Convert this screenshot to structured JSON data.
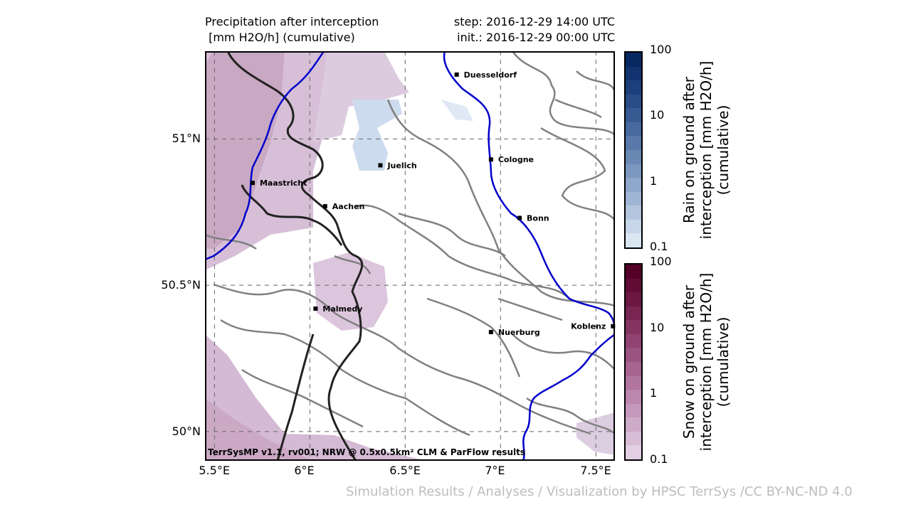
{
  "header": {
    "title_line1": "Precipitation after interception",
    "title_line2": " [mm H2O/h] (cumulative)",
    "step": "step: 2016-12-29 14:00 UTC",
    "init": "init.: 2016-12-29 00:00 UTC"
  },
  "map": {
    "lon_range": [
      5.45,
      7.6
    ],
    "lat_range": [
      49.9,
      51.3
    ],
    "lat_ticks": [
      {
        "value": 51.0,
        "label": "51°N"
      },
      {
        "value": 50.5,
        "label": "50.5°N"
      },
      {
        "value": 50.0,
        "label": "50°N"
      }
    ],
    "lon_ticks": [
      {
        "value": 5.5,
        "label": "5.5°E"
      },
      {
        "value": 6.0,
        "label": "6°E"
      },
      {
        "value": 6.5,
        "label": "6.5°E"
      },
      {
        "value": 7.0,
        "label": "7°E"
      },
      {
        "value": 7.5,
        "label": "7.5°E"
      }
    ],
    "cities": [
      {
        "name": "Duesseldorf",
        "lon": 6.77,
        "lat": 51.22
      },
      {
        "name": "Cologne",
        "lon": 6.95,
        "lat": 50.93
      },
      {
        "name": "Juelich",
        "lon": 6.37,
        "lat": 50.91
      },
      {
        "name": "Maastricht",
        "lon": 5.7,
        "lat": 50.85
      },
      {
        "name": "Aachen",
        "lon": 6.08,
        "lat": 50.77
      },
      {
        "name": "Bonn",
        "lon": 7.1,
        "lat": 50.73
      },
      {
        "name": "Malmedy",
        "lon": 6.03,
        "lat": 50.42
      },
      {
        "name": "Nuerburg",
        "lon": 6.95,
        "lat": 50.34
      },
      {
        "name": "Koblenz",
        "lon": 7.59,
        "lat": 50.36
      }
    ],
    "footer_note": "TerrSysMP v1.1, rv001; NRW @ 0.5x0.5km² CLM & ParFlow results",
    "colors": {
      "snow_light": "#dcc7dd",
      "snow_mid": "#c9a6c3",
      "rain_light": "#cfdcec",
      "river": "#0000cc",
      "border": "#222222",
      "contour": "#808080",
      "grid": "#666666"
    }
  },
  "colorbars": [
    {
      "label_line1": "Rain on ground after",
      "label_line2": "interception [mm H2O/h]",
      "label_line3": "(cumulative)",
      "ticks": [
        "100",
        "10",
        "1",
        "0.1"
      ],
      "colors": [
        "#dbe6f3",
        "#c7d6e9",
        "#b4c6df",
        "#a0b6d5",
        "#8ea7ca",
        "#7b97bf",
        "#6988b4",
        "#5879a9",
        "#47699e",
        "#385a92",
        "#2a4c86",
        "#1d3f7b",
        "#12336f",
        "#082862"
      ]
    },
    {
      "label_line1": "Snow on ground after",
      "label_line2": "interception [mm H2O/h]",
      "label_line3": "(cumulative)",
      "ticks": [
        "100",
        "10",
        "1",
        "0.1"
      ],
      "colors": [
        "#e2cfe3",
        "#d8bdd6",
        "#ceabc9",
        "#c599bb",
        "#bb87ad",
        "#b1759e",
        "#a6648f",
        "#9b537f",
        "#904370",
        "#843460",
        "#782551",
        "#6c1843",
        "#600c35",
        "#540029"
      ]
    }
  ],
  "credit": "Simulation Results / Analyses / Visualization by HPSC TerrSys /CC BY-NC-ND 4.0"
}
